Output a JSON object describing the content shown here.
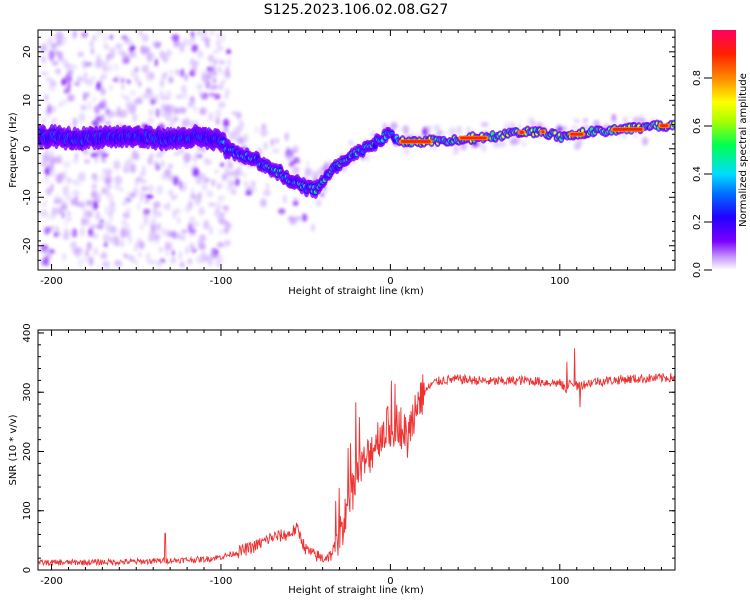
{
  "title": "S125.2023.106.02.08.G27",
  "chart_data": [
    {
      "type": "heatmap",
      "name": "spectrogram",
      "xlabel": "Height of straight line (km)",
      "ylabel": "Frequency (Hz)",
      "xlim": [
        -208,
        168
      ],
      "ylim": [
        -25,
        24.5
      ],
      "xticks": [
        -200,
        -100,
        0,
        100
      ],
      "xtick_labels": [
        "-200",
        "-100",
        "0",
        "100"
      ],
      "yticks": [
        -20,
        -10,
        0,
        10,
        20
      ],
      "ytick_labels": [
        "-20",
        "-10",
        "0",
        "10",
        "20"
      ],
      "ridge": [
        {
          "x": -200,
          "y": 2.5
        },
        {
          "x": -185,
          "y": 2.0
        },
        {
          "x": -170,
          "y": 2.5
        },
        {
          "x": -150,
          "y": 2.5
        },
        {
          "x": -130,
          "y": 2.0
        },
        {
          "x": -115,
          "y": 2.5
        },
        {
          "x": -100,
          "y": 1.5
        },
        {
          "x": -95,
          "y": -0.5
        },
        {
          "x": -85,
          "y": -1.5
        },
        {
          "x": -75,
          "y": -3.0
        },
        {
          "x": -65,
          "y": -5.0
        },
        {
          "x": -58,
          "y": -6.5
        },
        {
          "x": -50,
          "y": -8.0
        },
        {
          "x": -44,
          "y": -8.5
        },
        {
          "x": -38,
          "y": -6.0
        },
        {
          "x": -30,
          "y": -3.0
        },
        {
          "x": -20,
          "y": -1.0
        },
        {
          "x": -10,
          "y": 1.0
        },
        {
          "x": -3,
          "y": 2.5
        },
        {
          "x": 0,
          "y": 3.0
        },
        {
          "x": 5,
          "y": 1.5
        },
        {
          "x": 20,
          "y": 1.5
        },
        {
          "x": 40,
          "y": 2.0
        },
        {
          "x": 60,
          "y": 2.5
        },
        {
          "x": 80,
          "y": 3.5
        },
        {
          "x": 90,
          "y": 3.5
        },
        {
          "x": 100,
          "y": 2.5
        },
        {
          "x": 120,
          "y": 3.5
        },
        {
          "x": 140,
          "y": 4.0
        },
        {
          "x": 168,
          "y": 5.0
        }
      ]
    },
    {
      "type": "line",
      "name": "snr",
      "xlabel": "Height of straight line (km)",
      "ylabel": "SNR (10 * v/v)",
      "xlim": [
        -208,
        168
      ],
      "ylim": [
        0,
        405
      ],
      "xticks": [
        -200,
        -100,
        0,
        100
      ],
      "xtick_labels": [
        "-200",
        "-100",
        "0",
        "100"
      ],
      "yticks": [
        0,
        100,
        200,
        300,
        400
      ],
      "ytick_labels": [
        "0",
        "100",
        "200",
        "300",
        "400"
      ],
      "color": "#ee3333",
      "series": [
        {
          "name": "SNR",
          "x": [
            -208,
            -150,
            -130,
            -110,
            -100,
            -90,
            -80,
            -70,
            -60,
            -55,
            -50,
            -45,
            -40,
            -35,
            -30,
            -25,
            -20,
            -15,
            -10,
            -5,
            0,
            5,
            10,
            15,
            20,
            25,
            30,
            40,
            60,
            80,
            100,
            104,
            107,
            110,
            120,
            140,
            168
          ],
          "y": [
            12,
            14,
            16,
            18,
            22,
            30,
            40,
            55,
            60,
            70,
            35,
            25,
            20,
            25,
            60,
            110,
            160,
            180,
            210,
            235,
            240,
            250,
            220,
            280,
            300,
            315,
            320,
            322,
            318,
            320,
            315,
            305,
            320,
            310,
            318,
            322,
            325
          ]
        }
      ]
    }
  ],
  "colorbar": {
    "label": "Normalized spectral amplitude",
    "ticks": [
      0.0,
      0.2,
      0.4,
      0.6,
      0.8
    ],
    "tick_labels": [
      "0.0",
      "0.2",
      "0.4",
      "0.6",
      "0.8"
    ],
    "range": [
      0,
      1
    ],
    "colors": [
      "#ffffff",
      "#c9a0ff",
      "#7b00ff",
      "#2000ff",
      "#0070ff",
      "#00ddff",
      "#00ff50",
      "#aaff00",
      "#ffff00",
      "#ff8800",
      "#ff2000",
      "#ff0060"
    ]
  }
}
